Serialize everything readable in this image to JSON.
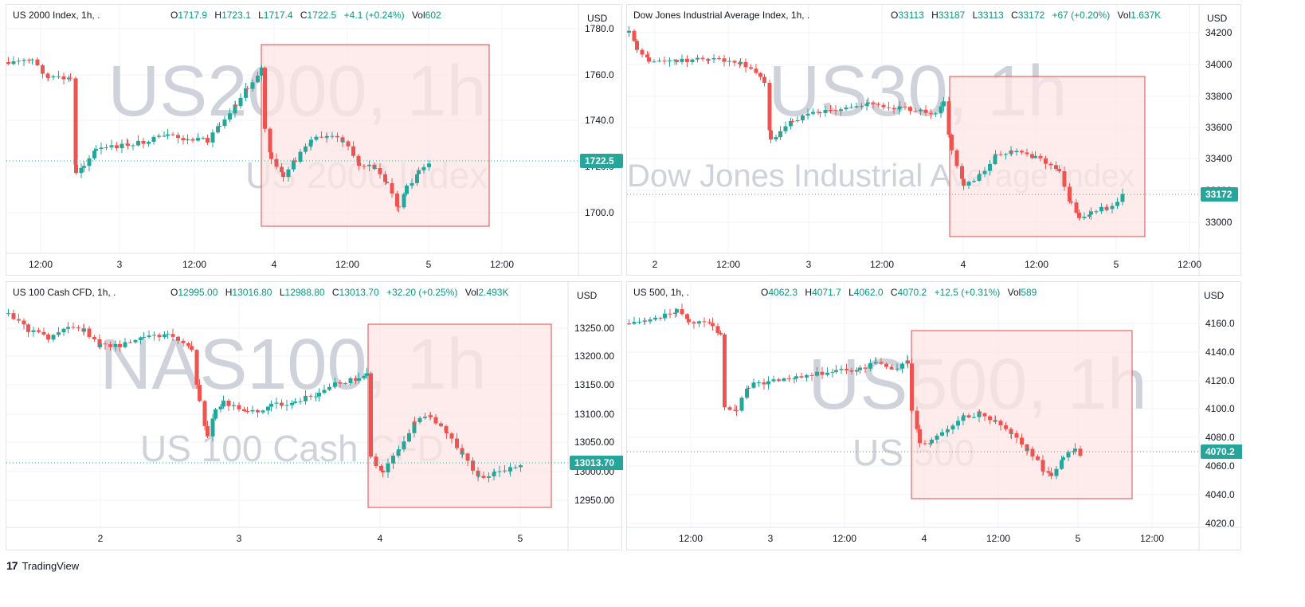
{
  "app": {
    "brand": "TradingView"
  },
  "charts": [
    {
      "id": "us2000",
      "symbol_label": "US 2000 Index, 1h, .",
      "ohlc": {
        "o": "1717.9",
        "h": "1723.1",
        "l": "1717.4",
        "c": "1722.5",
        "chg": "+4.1 (+0.24%)",
        "vol": "602"
      },
      "currency": "USD",
      "watermark_main": "US2000, 1h",
      "watermark_sub": "US 2000 Index",
      "price_tag": "1722.5",
      "y_ticks": [
        "1780.0",
        "1760.0",
        "1740.0",
        "1720.0",
        "1700.0"
      ],
      "x_ticks": [
        "12:00",
        "3",
        "12:00",
        "4",
        "12:00",
        "5",
        "12:00"
      ]
    },
    {
      "id": "us30",
      "symbol_label": "Dow Jones Industrial Average Index, 1h, .",
      "ohlc": {
        "o": "33113",
        "h": "33187",
        "l": "33113",
        "c": "33172",
        "chg": "+67 (+0.20%)",
        "vol": "1.637K"
      },
      "currency": "USD",
      "watermark_main": "US30, 1h",
      "watermark_sub": "Dow Jones Industrial Average Index",
      "price_tag": "33172",
      "y_ticks": [
        "34200",
        "34000",
        "33800",
        "33600",
        "33400",
        "33200",
        "33000"
      ],
      "x_ticks": [
        "2",
        "12:00",
        "3",
        "12:00",
        "4",
        "12:00",
        "5",
        "12:00"
      ]
    },
    {
      "id": "nas100",
      "symbol_label": "US 100 Cash CFD, 1h, .",
      "ohlc": {
        "o": "12995.00",
        "h": "13016.80",
        "l": "12988.80",
        "c": "13013.70",
        "chg": "+32.20 (+0.25%)",
        "vol": "2.493K"
      },
      "currency": "USD",
      "watermark_main": "NAS100, 1h",
      "watermark_sub": "US 100 Cash CFD",
      "price_tag": "13013.70",
      "y_ticks": [
        "13250.00",
        "13200.00",
        "13150.00",
        "13100.00",
        "13050.00",
        "13000.00",
        "12950.00"
      ],
      "x_ticks": [
        "2",
        "3",
        "4",
        "5"
      ]
    },
    {
      "id": "us500",
      "symbol_label": "US 500, 1h, .",
      "ohlc": {
        "o": "4062.3",
        "h": "4071.7",
        "l": "4062.0",
        "c": "4070.2",
        "chg": "+12.5 (+0.31%)",
        "vol": "589"
      },
      "currency": "USD",
      "watermark_main": "US500, 1h",
      "watermark_sub": "US 500",
      "price_tag": "4070.2",
      "y_ticks": [
        "4160.0",
        "4140.0",
        "4120.0",
        "4100.0",
        "4080.0",
        "4060.0",
        "4040.0",
        "4020.0"
      ],
      "x_ticks": [
        "12:00",
        "3",
        "12:00",
        "4",
        "12:00",
        "5",
        "12:00"
      ]
    }
  ],
  "colors": {
    "up": "#26a69a",
    "down": "#ef5350",
    "box_fill": "#fde4e4",
    "box_border": "#e04a4a",
    "price_tag_bg": "#26a69a",
    "dotted_line": "#26a69a"
  }
}
